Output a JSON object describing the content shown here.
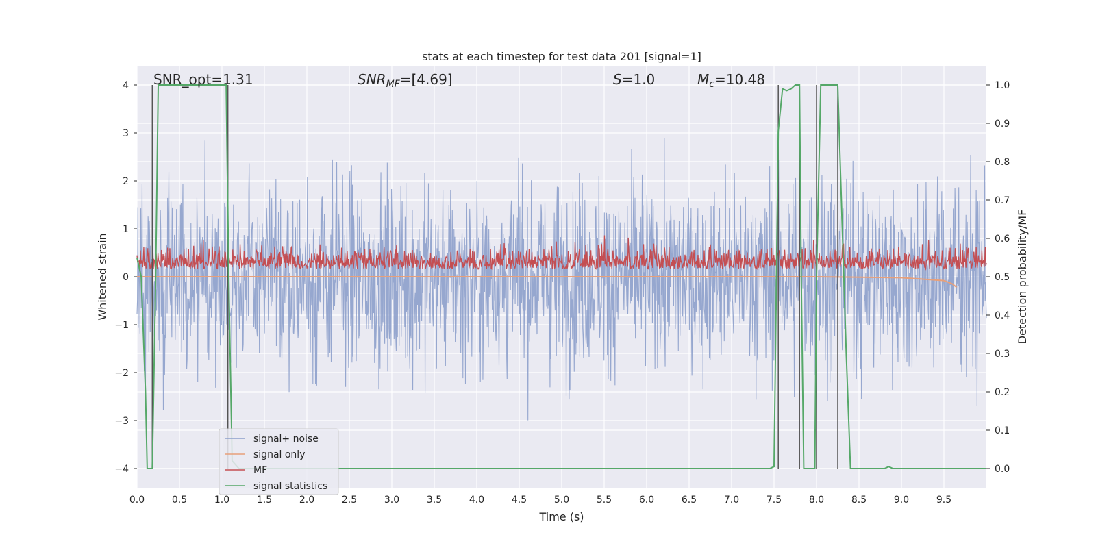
{
  "chart_data": {
    "type": "line",
    "title": "stats at each timestep for test data 201 [signal=1]",
    "xlabel": "Time (s)",
    "ylabel_left": "Whitened strain",
    "ylabel_right": "Detection probability/MF",
    "xlim": [
      0.0,
      10.0
    ],
    "ylim_left": [
      -4.4,
      4.4
    ],
    "ylim_right": [
      -0.05,
      1.05
    ],
    "xticks": [
      "0.0",
      "0.5",
      "1.0",
      "1.5",
      "2.0",
      "2.5",
      "3.0",
      "3.5",
      "4.0",
      "4.5",
      "5.0",
      "5.5",
      "6.0",
      "6.5",
      "7.0",
      "7.5",
      "8.0",
      "8.5",
      "9.0",
      "9.5"
    ],
    "yticks_left": [
      "−4",
      "−3",
      "−2",
      "−1",
      "0",
      "1",
      "2",
      "3",
      "4"
    ],
    "yticks_right": [
      "0.0",
      "0.1",
      "0.2",
      "0.3",
      "0.4",
      "0.5",
      "0.6",
      "0.7",
      "0.8",
      "0.9",
      "1.0"
    ],
    "grid": true,
    "legend_position": "lower-left",
    "annotations": {
      "snr_opt": "SNR_opt=1.31",
      "snr_mf_base": "SNR",
      "snr_mf_sub": "MF",
      "snr_mf_rest": "=[4.69]",
      "s_label": "S",
      "s_rest": "=1.0",
      "mc_base": "M",
      "mc_sub": "c",
      "mc_rest": "=10.48"
    },
    "series": [
      {
        "name": "signal+ noise",
        "color": "#8da0cb",
        "description_values": {
          "approx_range": [
            -4.0,
            4.0
          ],
          "typical_envelope": [
            -1.6,
            1.6
          ]
        }
      },
      {
        "name": "signal only",
        "color": "#e8a07a",
        "values_x": [
          0.0,
          8.0,
          9.0,
          9.5,
          9.6,
          9.65
        ],
        "values_y": [
          0.0,
          0.0,
          -0.02,
          -0.08,
          -0.15,
          -0.22
        ]
      },
      {
        "name": "MF",
        "color": "#c44e52",
        "approx_range_right_axis": [
          0.5,
          0.62
        ]
      },
      {
        "name": "signal statistics",
        "color": "#55a868",
        "x": [
          0.0,
          0.05,
          0.1,
          0.12,
          0.18,
          0.22,
          0.25,
          0.3,
          1.05,
          1.08,
          1.12,
          1.2,
          7.45,
          7.5,
          7.55,
          7.6,
          7.65,
          7.7,
          7.75,
          7.8,
          7.82,
          7.85,
          7.98,
          8.0,
          8.05,
          8.25,
          8.35,
          8.4,
          8.8,
          8.85,
          8.9,
          10.0
        ],
        "y": [
          0.55,
          0.5,
          0.2,
          0.0,
          0.0,
          0.5,
          1.0,
          1.0,
          1.0,
          0.5,
          0.02,
          0.0,
          0.0,
          0.005,
          0.88,
          0.99,
          0.985,
          0.99,
          1.0,
          1.0,
          0.5,
          0.0,
          0.0,
          0.5,
          1.0,
          1.0,
          0.3,
          0.0,
          0.0,
          0.005,
          0.0,
          0.0
        ]
      }
    ],
    "vertical_markers_x": [
      0.18,
      1.07,
      7.55,
      7.8,
      8.0,
      8.25
    ]
  }
}
